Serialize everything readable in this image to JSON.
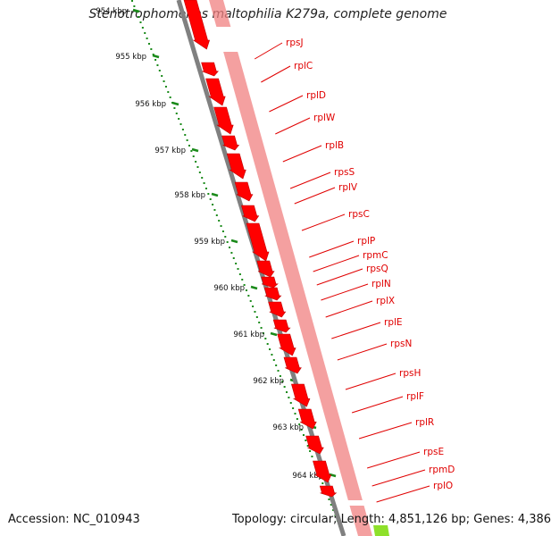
{
  "header": {
    "title": "Stenotrophomonas maltophilia K279a, complete genome"
  },
  "footer": {
    "accession": "Accession: NC_010943",
    "summary": "Topology: circular; Length: 4,851,126 bp; Genes: 4,386"
  },
  "ruler": {
    "labels": [
      "954 kbp",
      "955 kbp",
      "956 kbp",
      "957 kbp",
      "958 kbp",
      "959 kbp",
      "960 kbp",
      "961 kbp",
      "962 kbp",
      "963 kbp",
      "964 kbp"
    ]
  },
  "genes": [
    "rpsJ",
    "rplC",
    "rplD",
    "rplW",
    "rplB",
    "rpsS",
    "rplV",
    "rpsC",
    "rplP",
    "rpmC",
    "rpsQ",
    "rplN",
    "rplX",
    "rplE",
    "rpsN",
    "rpsH",
    "rplF",
    "rplR",
    "rpsE",
    "rpmD",
    "rplO"
  ],
  "colors": {
    "gene_arrow": "#ff0000",
    "gene_track": "#f08080",
    "backbone": "#808080",
    "ruler_dots": "#1a8a1a",
    "label": "#e00000",
    "gc_skew": "#8ee02a"
  }
}
